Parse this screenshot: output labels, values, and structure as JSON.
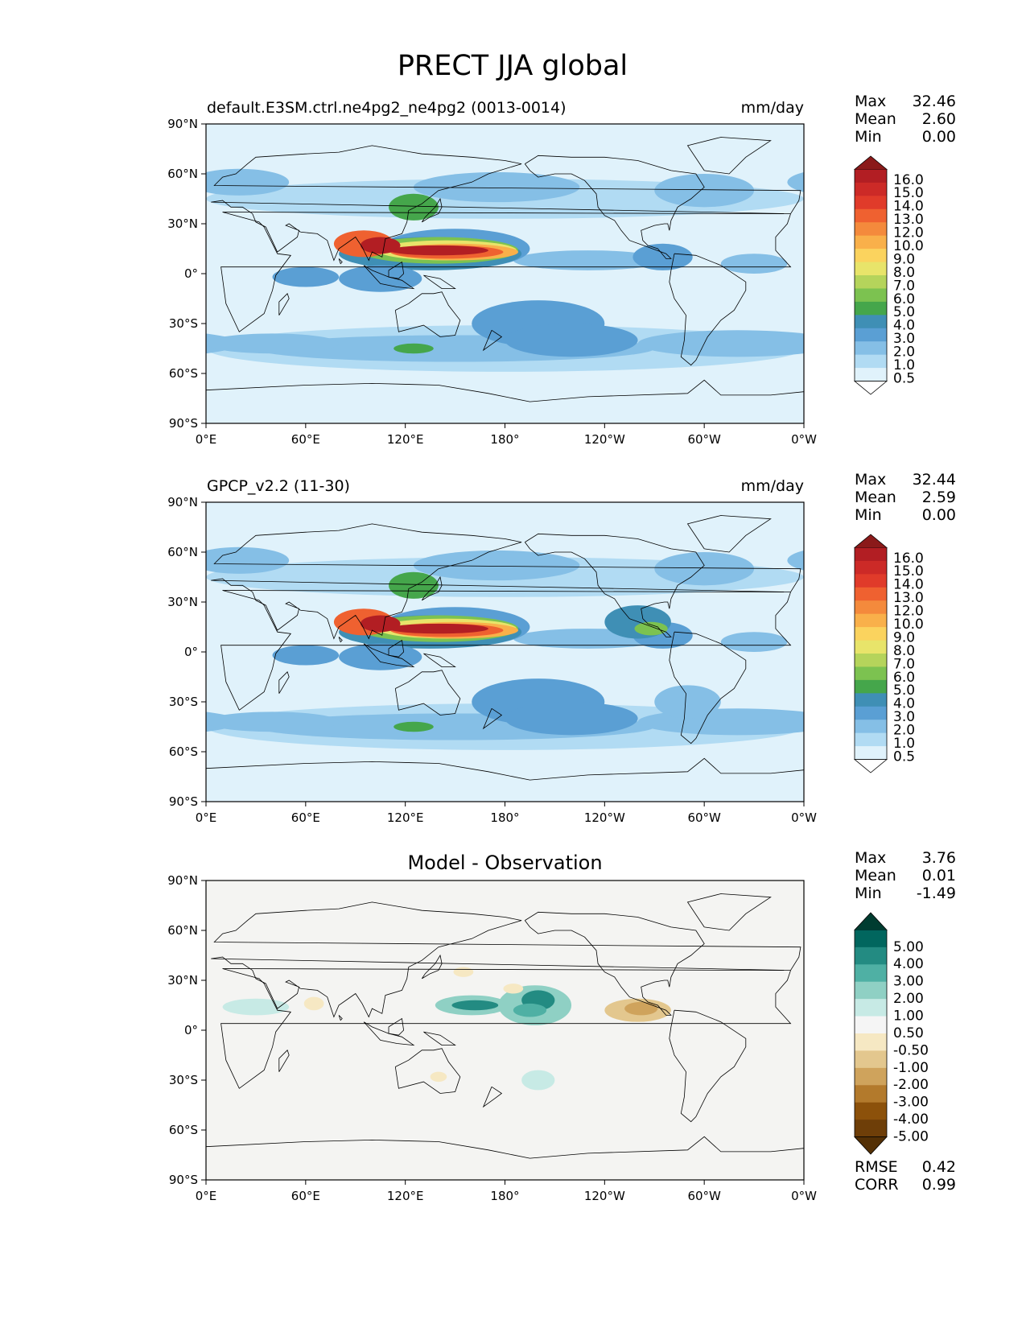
{
  "figure": {
    "title": "PRECT JJA global"
  },
  "chart_data": [
    {
      "type": "heatmap",
      "panel": "test",
      "title_left": "default.E3SM.ctrl.ne4pg2_ne4pg2 (0013-0014)",
      "title_right": "mm/day",
      "x_ticks": [
        "0°E",
        "60°E",
        "120°E",
        "180°",
        "120°W",
        "60°W",
        "0°W"
      ],
      "y_ticks": [
        "90°N",
        "60°N",
        "30°N",
        "0°",
        "30°S",
        "60°S",
        "90°S"
      ],
      "xlim": [
        0,
        360
      ],
      "ylim": [
        -90,
        90
      ],
      "stats": {
        "labels": [
          "Max",
          "Mean",
          "Min"
        ],
        "values": [
          "32.46",
          "2.60",
          "0.00"
        ]
      },
      "colorbar": {
        "levels": [
          "16.0",
          "15.0",
          "14.0",
          "13.0",
          "12.0",
          "10.0",
          "9.0",
          "8.0",
          "7.0",
          "6.0",
          "5.0",
          "4.0",
          "3.0",
          "2.0",
          "1.0",
          "0.5"
        ],
        "top_color": "#8b1a1a",
        "bottom_color": "#ffffff",
        "colors": [
          "#b21e23",
          "#cc2a27",
          "#e03b2a",
          "#ef6130",
          "#f48a3c",
          "#f9b04a",
          "#fbd35e",
          "#e8e46a",
          "#b5d45b",
          "#7cc250",
          "#45a64b",
          "#3f8fb5",
          "#5a9fd4",
          "#85bfe6",
          "#b1dbf3",
          "#e0f2fb"
        ]
      }
    },
    {
      "type": "heatmap",
      "panel": "reference",
      "title_left": "GPCP_v2.2 (11-30)",
      "title_right": "mm/day",
      "x_ticks": [
        "0°E",
        "60°E",
        "120°E",
        "180°",
        "120°W",
        "60°W",
        "0°W"
      ],
      "y_ticks": [
        "90°N",
        "60°N",
        "30°N",
        "0°",
        "30°S",
        "60°S",
        "90°S"
      ],
      "xlim": [
        0,
        360
      ],
      "ylim": [
        -90,
        90
      ],
      "stats": {
        "labels": [
          "Max",
          "Mean",
          "Min"
        ],
        "values": [
          "32.44",
          "2.59",
          "0.00"
        ]
      },
      "colorbar": {
        "levels": [
          "16.0",
          "15.0",
          "14.0",
          "13.0",
          "12.0",
          "10.0",
          "9.0",
          "8.0",
          "7.0",
          "6.0",
          "5.0",
          "4.0",
          "3.0",
          "2.0",
          "1.0",
          "0.5"
        ],
        "top_color": "#8b1a1a",
        "bottom_color": "#ffffff",
        "colors": [
          "#b21e23",
          "#cc2a27",
          "#e03b2a",
          "#ef6130",
          "#f48a3c",
          "#f9b04a",
          "#fbd35e",
          "#e8e46a",
          "#b5d45b",
          "#7cc250",
          "#45a64b",
          "#3f8fb5",
          "#5a9fd4",
          "#85bfe6",
          "#b1dbf3",
          "#e0f2fb"
        ]
      }
    },
    {
      "type": "heatmap",
      "panel": "difference",
      "title_center": "Model - Observation",
      "x_ticks": [
        "0°E",
        "60°E",
        "120°E",
        "180°",
        "120°W",
        "60°W",
        "0°W"
      ],
      "y_ticks": [
        "90°N",
        "60°N",
        "30°N",
        "0°",
        "30°S",
        "60°S",
        "90°S"
      ],
      "xlim": [
        0,
        360
      ],
      "ylim": [
        -90,
        90
      ],
      "stats": {
        "labels": [
          "Max",
          "Mean",
          "Min"
        ],
        "values": [
          "3.76",
          "0.01",
          "-1.49"
        ]
      },
      "metrics": {
        "labels": [
          "RMSE",
          "CORR"
        ],
        "values": [
          "0.42",
          "0.99"
        ]
      },
      "colorbar": {
        "levels": [
          "5.00",
          "4.00",
          "3.00",
          "2.00",
          "1.00",
          "0.50",
          "-0.50",
          "-1.00",
          "-2.00",
          "-3.00",
          "-4.00",
          "-5.00"
        ],
        "top_color": "#003c30",
        "bottom_color": "#543005",
        "colors": [
          "#01665e",
          "#238b82",
          "#4fb0a4",
          "#8fd0c4",
          "#c7eae5",
          "#f5f5f5",
          "#f6e8c3",
          "#e3c78e",
          "#cfa35c",
          "#b37a2c",
          "#8c510a",
          "#6e3e08"
        ]
      }
    }
  ]
}
